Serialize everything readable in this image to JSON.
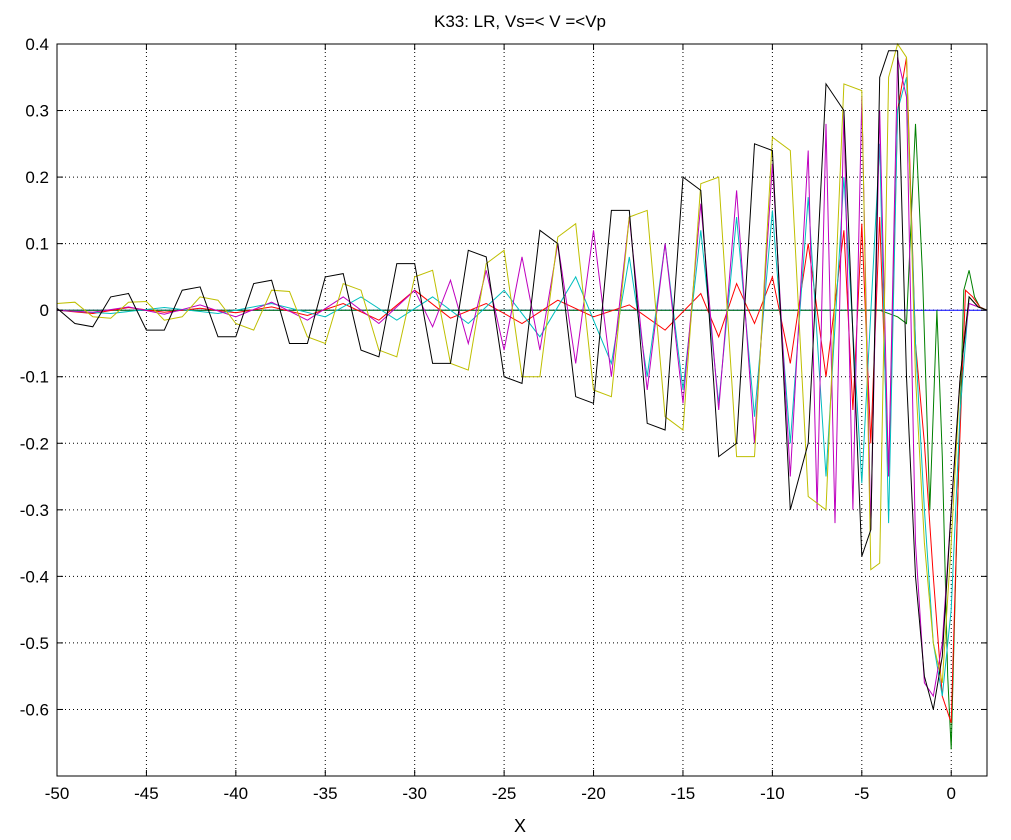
{
  "chart_data": {
    "type": "line",
    "title": "K33: LR, Vs=< V =<Vp",
    "xlabel": "X",
    "ylabel": "",
    "xlim": [
      -50,
      2
    ],
    "ylim": [
      -0.7,
      0.4
    ],
    "grid": true,
    "xticks": [
      -50,
      -45,
      -40,
      -35,
      -30,
      -25,
      -20,
      -15,
      -10,
      -5,
      0
    ],
    "xtick_labels": [
      "-50",
      "-45",
      "-40",
      "-35",
      "-30",
      "-25",
      "-20",
      "-15",
      "-10",
      "-5",
      "0"
    ],
    "yticks": [
      0.4,
      0.3,
      0.2,
      0.1,
      0,
      -0.1,
      -0.2,
      -0.3,
      -0.4,
      -0.5,
      -0.6
    ],
    "ytick_labels": [
      "0.4",
      "0.3",
      "0.2",
      "0.1",
      "0",
      "-0.1",
      "-0.2",
      "-0.3",
      "-0.4",
      "-0.5",
      "-0.6"
    ],
    "series": [
      {
        "color": "#0000ff",
        "x": [
          -50,
          -20,
          0,
          2
        ],
        "y": [
          0,
          0,
          0,
          0
        ]
      },
      {
        "color": "#008000",
        "x": [
          -50,
          -30,
          -10,
          -4,
          -3,
          -2.5,
          -2,
          -1.6,
          -1.2,
          -0.8,
          -0.5,
          -0.2,
          0,
          0.2,
          0.4,
          0.7,
          1.0,
          1.3,
          1.6,
          2
        ],
        "y": [
          0,
          0,
          0,
          0,
          -0.01,
          -0.02,
          0.28,
          0.05,
          -0.3,
          0.0,
          -0.22,
          -0.55,
          -0.66,
          -0.45,
          -0.25,
          0.03,
          0.06,
          0.02,
          0.005,
          0
        ]
      },
      {
        "color": "#ff0000",
        "x": [
          -50,
          -48,
          -46,
          -44,
          -42,
          -40,
          -38,
          -36,
          -34,
          -32,
          -30,
          -28,
          -26,
          -24,
          -22,
          -20,
          -18,
          -16,
          -14,
          -13,
          -12,
          -11,
          -10,
          -9,
          -8,
          -7,
          -6,
          -5.5,
          -5,
          -4.5,
          -4,
          -3.5,
          -3,
          -2.5,
          -2,
          -1.5,
          -1.0,
          -0.5,
          0,
          0.4,
          0.8,
          1.2,
          1.6,
          2
        ],
        "y": [
          0,
          -0.005,
          0.004,
          -0.003,
          0.003,
          -0.004,
          0.005,
          -0.008,
          0.01,
          -0.015,
          0.03,
          -0.012,
          0.01,
          -0.02,
          0.015,
          -0.01,
          0.008,
          -0.03,
          0.025,
          -0.04,
          0.04,
          -0.02,
          0.05,
          -0.08,
          0.1,
          -0.1,
          0.12,
          -0.15,
          0.13,
          -0.2,
          0.14,
          -0.25,
          0.3,
          0.38,
          -0.05,
          -0.2,
          -0.4,
          -0.58,
          -0.62,
          -0.25,
          0.03,
          0.02,
          0.005,
          0
        ]
      },
      {
        "color": "#00bfbf",
        "x": [
          -50,
          -47,
          -44,
          -41,
          -38,
          -35,
          -33,
          -31,
          -29,
          -27,
          -25,
          -23,
          -21,
          -19,
          -18,
          -17,
          -16,
          -15,
          -14,
          -13,
          -12,
          -11,
          -10,
          -9,
          -8,
          -7,
          -6,
          -5,
          -4,
          -3.5,
          -3,
          -2.5,
          -2.0,
          -1.5,
          -1.0,
          -0.5,
          0,
          0.5,
          1.0,
          1.5,
          2
        ],
        "y": [
          0,
          -0.005,
          0.004,
          -0.005,
          0.01,
          -0.01,
          0.02,
          -0.015,
          0.02,
          -0.02,
          0.03,
          -0.04,
          0.05,
          -0.08,
          0.08,
          -0.1,
          0.1,
          -0.12,
          0.12,
          -0.14,
          0.14,
          -0.16,
          0.15,
          -0.2,
          0.17,
          -0.25,
          0.2,
          -0.26,
          0.25,
          -0.32,
          0.3,
          0.35,
          -0.05,
          -0.3,
          -0.5,
          -0.58,
          -0.45,
          -0.15,
          0.02,
          0.005,
          0
        ]
      },
      {
        "color": "#bf00bf",
        "x": [
          -50,
          -48,
          -46,
          -44,
          -42,
          -40,
          -38,
          -36,
          -34,
          -32,
          -30,
          -29,
          -28,
          -27,
          -26,
          -25,
          -24,
          -23,
          -22,
          -21,
          -20,
          -19,
          -18,
          -17,
          -16,
          -15,
          -14,
          -13,
          -12,
          -11,
          -10,
          -9,
          -8,
          -7.5,
          -7,
          -6.5,
          -6,
          -5.5,
          -5,
          -4.5,
          -4,
          -3.5,
          -3,
          -2.5,
          -2,
          -1.5,
          -1.0,
          -0.5,
          0,
          0.5,
          1.0,
          1.5,
          2
        ],
        "y": [
          0,
          -0.003,
          0.005,
          -0.006,
          0.008,
          -0.01,
          0.012,
          -0.015,
          0.02,
          -0.02,
          0.03,
          -0.025,
          0.045,
          -0.05,
          0.06,
          -0.06,
          0.08,
          -0.06,
          0.1,
          -0.08,
          0.12,
          -0.1,
          0.14,
          -0.12,
          0.1,
          -0.14,
          0.16,
          -0.15,
          0.18,
          -0.2,
          0.22,
          -0.25,
          0.24,
          -0.3,
          0.28,
          -0.32,
          0.3,
          -0.3,
          0.32,
          -0.33,
          0.3,
          -0.25,
          0.38,
          0.32,
          -0.35,
          -0.56,
          -0.58,
          -0.5,
          -0.3,
          -0.1,
          0.01,
          0.005,
          0
        ]
      },
      {
        "color": "#bfbf00",
        "x": [
          -50,
          -49,
          -48,
          -47,
          -46,
          -45,
          -44,
          -43,
          -42,
          -41,
          -40,
          -39,
          -38,
          -37,
          -36,
          -35,
          -34,
          -33,
          -32,
          -31,
          -30,
          -29,
          -28,
          -27,
          -26,
          -25,
          -24,
          -23,
          -22,
          -21,
          -20,
          -19,
          -18,
          -17,
          -16,
          -15,
          -14,
          -13,
          -12,
          -11,
          -10,
          -9,
          -8,
          -7,
          -6,
          -5,
          -4.5,
          -4,
          -3.5,
          -3,
          -2.5,
          -2,
          -1.5,
          -1.0,
          -0.5,
          0,
          0.5,
          1.0,
          1.5,
          2
        ],
        "y": [
          0.01,
          0.012,
          -0.01,
          -0.012,
          0.012,
          0.013,
          -0.015,
          -0.01,
          0.02,
          0.015,
          -0.02,
          -0.03,
          0.03,
          0.028,
          -0.04,
          -0.05,
          0.04,
          0.03,
          -0.06,
          -0.07,
          0.05,
          0.06,
          -0.08,
          -0.09,
          0.07,
          0.09,
          -0.1,
          -0.1,
          0.11,
          0.13,
          -0.12,
          -0.13,
          0.14,
          0.15,
          -0.16,
          -0.18,
          0.19,
          0.2,
          -0.22,
          -0.22,
          0.26,
          0.24,
          -0.28,
          -0.3,
          0.34,
          0.33,
          -0.39,
          -0.38,
          0.35,
          0.4,
          0.38,
          -0.1,
          -0.35,
          -0.5,
          -0.56,
          -0.35,
          -0.1,
          0.02,
          0.005,
          0
        ]
      },
      {
        "color": "#000000",
        "x": [
          -50,
          -49,
          -48,
          -47,
          -46,
          -45,
          -44,
          -43,
          -42,
          -41,
          -40,
          -39,
          -38,
          -37,
          -36,
          -35,
          -34,
          -33,
          -32,
          -31,
          -30,
          -29,
          -28,
          -27,
          -26,
          -25,
          -24,
          -23,
          -22,
          -21,
          -20,
          -19,
          -18,
          -17,
          -16,
          -15,
          -14,
          -13,
          -12,
          -11,
          -10,
          -9,
          -8,
          -7,
          -6,
          -5,
          -4.5,
          -4,
          -3.5,
          -3,
          -2.5,
          -2,
          -1.5,
          -1.0,
          -0.5,
          0,
          0.5,
          1.0,
          1.5,
          2
        ],
        "y": [
          0.003,
          -0.02,
          -0.025,
          0.02,
          0.025,
          -0.03,
          -0.03,
          0.03,
          0.035,
          -0.04,
          -0.04,
          0.04,
          0.045,
          -0.05,
          -0.05,
          0.05,
          0.055,
          -0.06,
          -0.07,
          0.07,
          0.07,
          -0.08,
          -0.08,
          0.09,
          0.08,
          -0.1,
          -0.11,
          0.12,
          0.1,
          -0.13,
          -0.14,
          0.15,
          0.15,
          -0.17,
          -0.18,
          0.2,
          0.18,
          -0.22,
          -0.2,
          0.25,
          0.24,
          -0.3,
          -0.2,
          0.34,
          0.3,
          -0.37,
          -0.33,
          0.35,
          0.39,
          0.39,
          -0.1,
          -0.4,
          -0.55,
          -0.6,
          -0.52,
          -0.3,
          -0.1,
          0.02,
          0.005,
          0
        ]
      }
    ]
  }
}
